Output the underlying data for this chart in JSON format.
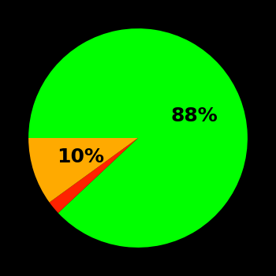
{
  "slices": [
    88,
    2,
    10
  ],
  "colors": [
    "#00ff00",
    "#ff2200",
    "#ffaa00"
  ],
  "background_color": "#000000",
  "label_fontsize": 18,
  "label_fontweight": "bold",
  "startangle": 180
}
